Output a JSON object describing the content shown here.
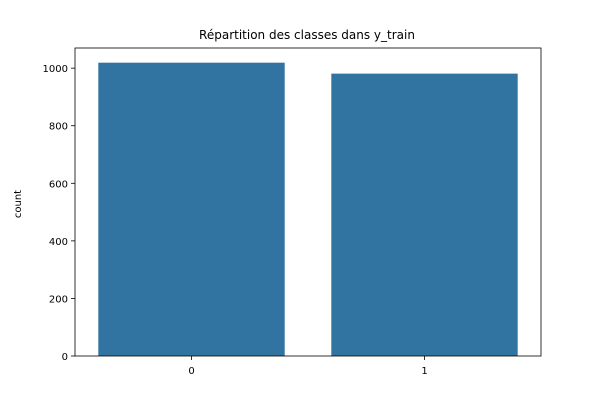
{
  "chart_data": {
    "type": "bar",
    "title": "Répartition des classes dans y_train",
    "xlabel": "",
    "ylabel": "count",
    "categories": [
      "0",
      "1"
    ],
    "values": [
      1019,
      981
    ],
    "ylim": [
      0,
      1070
    ],
    "yticks": [
      0,
      200,
      400,
      600,
      800,
      1000
    ],
    "grid": false,
    "bar_color": "#3274a1"
  }
}
